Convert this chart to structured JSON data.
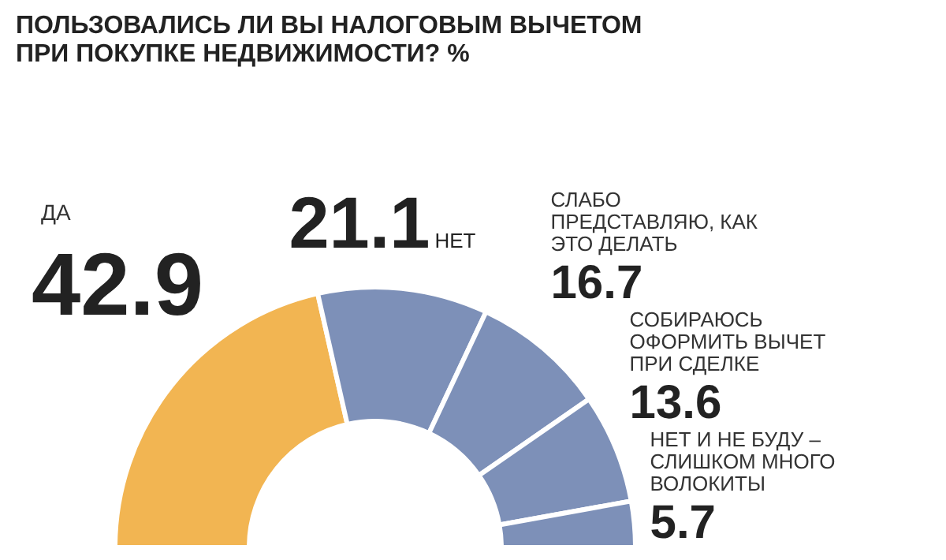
{
  "chart_data": {
    "type": "donut",
    "title": "ПОЛЬЗОВАЛИСЬ ЛИ ВЫ НАЛОГОВЫМ ВЫЧЕТОМ ПРИ ПОКУПКЕ НЕДВИЖИМОСТИ? %",
    "categories": [
      "ДА",
      "НЕТ",
      "СЛАБО ПРЕДСТАВЛЯЮ, КАК ЭТО ДЕЛАТЬ",
      "СОБИРАЮСЬ ОФОРМИТЬ ВЫЧЕТ ПРИ СДЕЛКЕ",
      "НЕТ И НЕ БУДУ – СЛИШКОМ МНОГО ВОЛОКИТЫ"
    ],
    "values": [
      42.9,
      21.1,
      16.7,
      13.6,
      5.7
    ],
    "colors": [
      "#f2b552",
      "#7d90b8",
      "#7d90b8",
      "#7d90b8",
      "#7d90b8"
    ],
    "data_labels": true
  }
}
